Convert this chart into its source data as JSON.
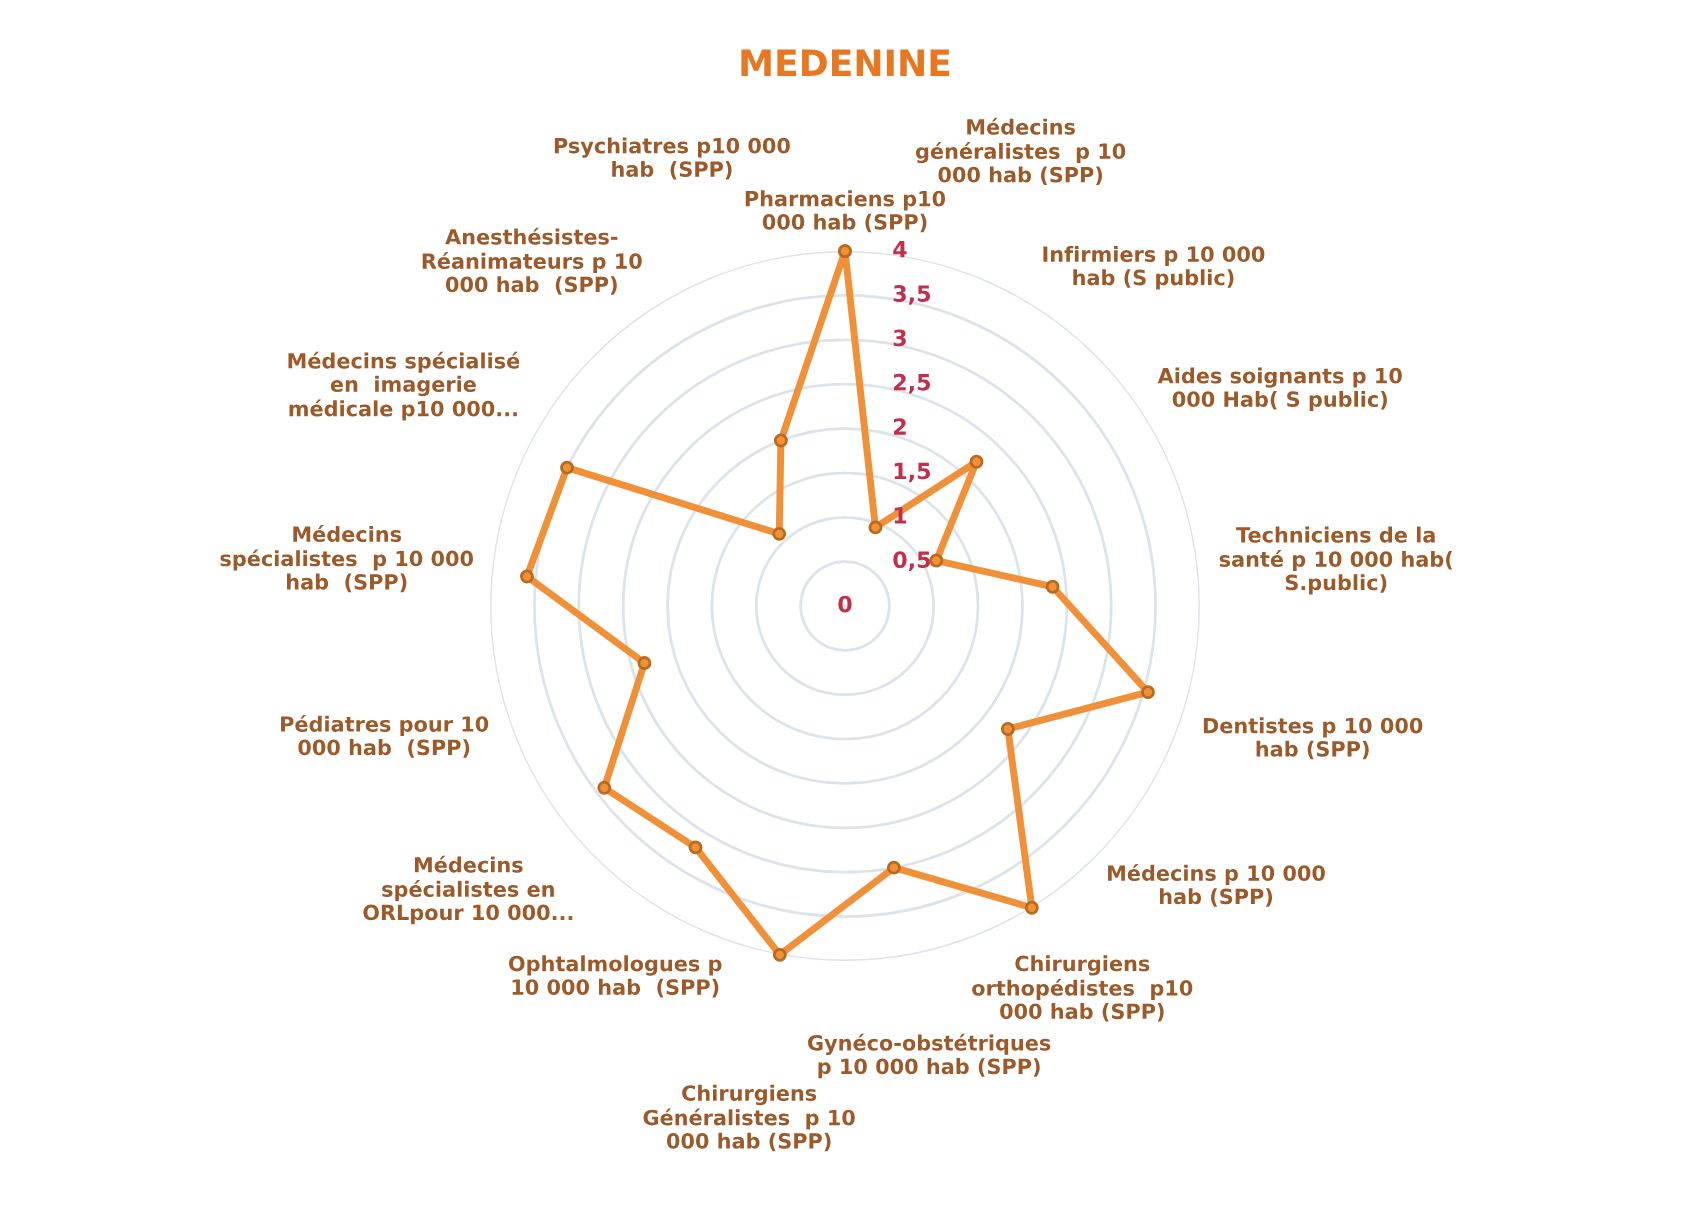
{
  "chart_data": {
    "type": "radar",
    "title": "MEDENINE",
    "categories": [
      "Pharmaciens p10\n000 hab (SPP)",
      "Médecins\ngénéralistes  p 10\n000 hab (SPP)",
      "Infirmiers p 10 000\nhab (S public)",
      "Aides soignants p 10\n000 Hab( S public)",
      "Techniciens de la\nsanté p 10 000 hab(\nS.public)",
      "Dentistes p 10 000\nhab (SPP)",
      "Médecins p 10 000\nhab (SPP)",
      "Chirurgiens\northopédistes  p10\n000 hab (SPP)",
      "Gynéco-obstétriques\np 10 000 hab (SPP)",
      "Chirurgiens\nGénéralistes  p 10\n000 hab (SPP)",
      "Ophtalmologues p\n10 000 hab  (SPP)",
      "Médecins\nspécialistes en\nORLpour 10 000...",
      "Pédiatres pour 10\n000 hab  (SPP)",
      "Médecins\nspécialistes  p 10 000\nhab  (SPP)",
      "Médecins spécialisé\nen  imagerie\nmédicale p10 000...",
      "Anesthésistes-\nRéanimateurs p 10\n000 hab  (SPP)",
      "Psychiatres p10 000\nhab  (SPP)"
    ],
    "series": [
      {
        "color": "#f0913a",
        "values": [
          4.0,
          0.95,
          2.2,
          1.15,
          2.35,
          3.55,
          2.3,
          4.0,
          3.0,
          4.0,
          3.2,
          3.4,
          2.35,
          3.6,
          3.5,
          1.1,
          2.0
        ]
      }
    ],
    "ylim": [
      0,
      4
    ],
    "yticks": [
      0,
      {
        "value": 0.5,
        "label": "0,5"
      },
      1,
      {
        "value": 1.5,
        "label": "1,5"
      },
      2,
      {
        "value": 2.5,
        "label": "2,5"
      },
      3,
      {
        "value": 3.5,
        "label": "3,5"
      },
      4
    ],
    "grid": "y",
    "marker": "circle",
    "line_style": "solid"
  }
}
